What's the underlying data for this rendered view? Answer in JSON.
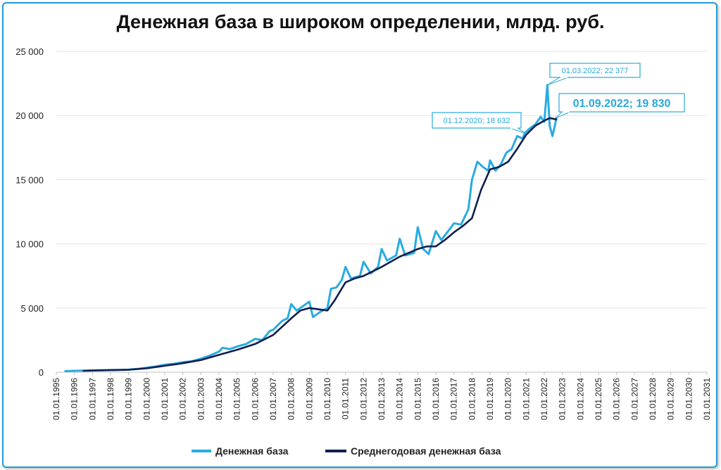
{
  "chart_data": {
    "type": "line",
    "title": "Денежная база в широком определении, млрд. руб.",
    "ylim": [
      0,
      25000
    ],
    "y_ticks": [
      0,
      5000,
      10000,
      15000,
      20000,
      25000
    ],
    "y_tick_labels": [
      "0",
      "5 000",
      "10 000",
      "15 000",
      "20 000",
      "25 000"
    ],
    "x_ticks": [
      "01.01.1995",
      "01.01.1996",
      "01.01.1997",
      "01.01.1998",
      "01.01.1999",
      "01.01.2000",
      "01.01.2001",
      "01.01.2002",
      "01.01.2003",
      "01.01.2004",
      "01.01.2005",
      "01.01.2006",
      "01.01.2007",
      "01.01.2008",
      "01.01.2009",
      "01.01.2010",
      "01.01.2011",
      "01.01.2012",
      "01.01.2013",
      "01.01.2014",
      "01.01.2015",
      "01.01.2016",
      "01.01.2017",
      "01.01.2018",
      "01.01.2019",
      "01.01.2020",
      "01.01.2021",
      "01.01.2022",
      "01.01.2023",
      "01.01.2024",
      "01.01.2025",
      "01.01.2026",
      "01.01.2027",
      "01.01.2028",
      "01.01.2029",
      "01.01.2030",
      "01.01.2031"
    ],
    "grid": true,
    "legend_position": "bottom",
    "series": [
      {
        "name": "Денежная база",
        "color": "#29abe2",
        "points": [
          [
            "1995.5",
            80
          ],
          [
            "1996.0",
            110
          ],
          [
            "1996.5",
            120
          ],
          [
            "1997.0",
            140
          ],
          [
            "1997.5",
            160
          ],
          [
            "1998.0",
            170
          ],
          [
            "1998.5",
            180
          ],
          [
            "1999.0",
            200
          ],
          [
            "1999.5",
            260
          ],
          [
            "2000.0",
            350
          ],
          [
            "2000.5",
            450
          ],
          [
            "2001.0",
            580
          ],
          [
            "2001.5",
            650
          ],
          [
            "2002.0",
            780
          ],
          [
            "2002.5",
            850
          ],
          [
            "2003.0",
            1050
          ],
          [
            "2003.5",
            1300
          ],
          [
            "2004.0",
            1600
          ],
          [
            "2004.2",
            1900
          ],
          [
            "2004.6",
            1800
          ],
          [
            "2005.0",
            2000
          ],
          [
            "2005.5",
            2200
          ],
          [
            "2006.0",
            2600
          ],
          [
            "2006.4",
            2500
          ],
          [
            "2006.8",
            3200
          ],
          [
            "2007.0",
            3300
          ],
          [
            "2007.5",
            4000
          ],
          [
            "2007.8",
            4200
          ],
          [
            "2008.0",
            5300
          ],
          [
            "2008.3",
            4800
          ],
          [
            "2008.7",
            5200
          ],
          [
            "2009.0",
            5500
          ],
          [
            "2009.2",
            4300
          ],
          [
            "2009.6",
            4700
          ],
          [
            "2010.0",
            5000
          ],
          [
            "2010.2",
            6500
          ],
          [
            "2010.5",
            6600
          ],
          [
            "2010.8",
            7200
          ],
          [
            "2011.0",
            8200
          ],
          [
            "2011.3",
            7300
          ],
          [
            "2011.8",
            7500
          ],
          [
            "2012.0",
            8600
          ],
          [
            "2012.4",
            7700
          ],
          [
            "2012.8",
            8200
          ],
          [
            "2013.0",
            9600
          ],
          [
            "2013.3",
            8700
          ],
          [
            "2013.8",
            9100
          ],
          [
            "2014.0",
            10400
          ],
          [
            "2014.3",
            9100
          ],
          [
            "2014.8",
            9300
          ],
          [
            "2015.0",
            11300
          ],
          [
            "2015.3",
            9600
          ],
          [
            "2015.6",
            9200
          ],
          [
            "2016.0",
            11000
          ],
          [
            "2016.3",
            10300
          ],
          [
            "2016.8",
            11200
          ],
          [
            "2017.0",
            11600
          ],
          [
            "2017.4",
            11500
          ],
          [
            "2017.8",
            12700
          ],
          [
            "2018.0",
            15000
          ],
          [
            "2018.3",
            16400
          ],
          [
            "2018.6",
            16000
          ],
          [
            "2018.9",
            15700
          ],
          [
            "2019.0",
            16500
          ],
          [
            "2019.3",
            15700
          ],
          [
            "2019.6",
            16200
          ],
          [
            "2019.9",
            17100
          ],
          [
            "2020.2",
            17400
          ],
          [
            "2020.5",
            18400
          ],
          [
            "2020.8",
            18200
          ],
          [
            "2020.92",
            18632
          ],
          [
            "2021.2",
            19000
          ],
          [
            "2021.5",
            19300
          ],
          [
            "2021.8",
            19900
          ],
          [
            "2022.0",
            19500
          ],
          [
            "2022.17",
            22377
          ],
          [
            "2022.3",
            19200
          ],
          [
            "2022.45",
            18400
          ],
          [
            "2022.6",
            19300
          ],
          [
            "2022.67",
            19830
          ]
        ]
      },
      {
        "name": "Среднегодовая денежная база",
        "color": "#0f1f4d",
        "points": [
          [
            "1996.5",
            110
          ],
          [
            "1997.0",
            125
          ],
          [
            "1998.0",
            160
          ],
          [
            "1999.0",
            190
          ],
          [
            "2000.0",
            300
          ],
          [
            "2001.0",
            500
          ],
          [
            "2002.0",
            700
          ],
          [
            "2003.0",
            950
          ],
          [
            "2004.0",
            1350
          ],
          [
            "2005.0",
            1750
          ],
          [
            "2006.0",
            2200
          ],
          [
            "2007.0",
            2900
          ],
          [
            "2008.0",
            4200
          ],
          [
            "2008.5",
            4800
          ],
          [
            "2009.0",
            5000
          ],
          [
            "2009.5",
            4900
          ],
          [
            "2010.0",
            4800
          ],
          [
            "2010.4",
            5600
          ],
          [
            "2011.0",
            7000
          ],
          [
            "2011.5",
            7300
          ],
          [
            "2012.0",
            7500
          ],
          [
            "2013.0",
            8200
          ],
          [
            "2014.0",
            9000
          ],
          [
            "2015.0",
            9600
          ],
          [
            "2015.5",
            9800
          ],
          [
            "2016.0",
            9800
          ],
          [
            "2016.5",
            10300
          ],
          [
            "2017.0",
            10900
          ],
          [
            "2017.5",
            11400
          ],
          [
            "2018.0",
            12000
          ],
          [
            "2018.5",
            14200
          ],
          [
            "2019.0",
            15800
          ],
          [
            "2019.5",
            16000
          ],
          [
            "2020.0",
            16400
          ],
          [
            "2020.5",
            17400
          ],
          [
            "2021.0",
            18500
          ],
          [
            "2021.5",
            19200
          ],
          [
            "2022.0",
            19600
          ],
          [
            "2022.3",
            19800
          ],
          [
            "2022.67",
            19700
          ]
        ]
      }
    ],
    "annotations": [
      {
        "label": "01.12.2020;  18 632",
        "x": "2020.92",
        "y": 18632
      },
      {
        "label": "01.03.2022;  22 377",
        "x": "2022.17",
        "y": 22377
      },
      {
        "label": "01.09.2022;  19 830",
        "x": "2022.67",
        "y": 19830
      }
    ]
  },
  "legend": {
    "item1": "Денежная база",
    "item2": "Среднегодовая денежная база"
  }
}
